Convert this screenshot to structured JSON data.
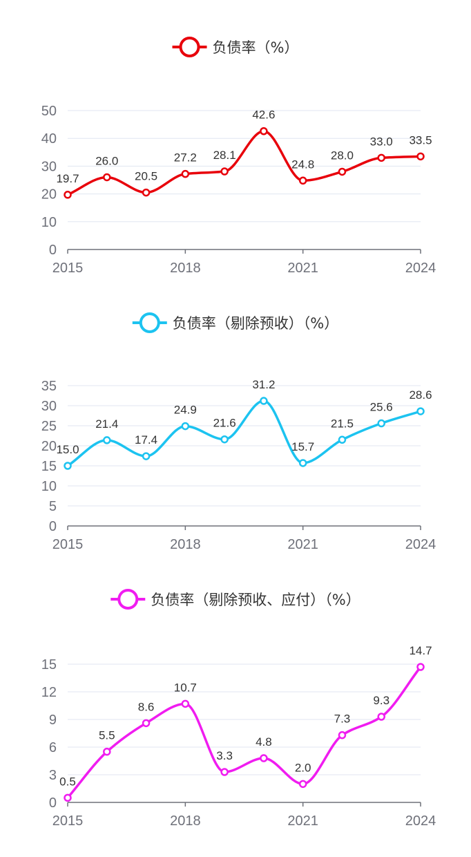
{
  "chart_data": [
    {
      "type": "line",
      "smooth": true,
      "x": [
        2015,
        2016,
        2017,
        2018,
        2019,
        2020,
        2021,
        2022,
        2023,
        2024
      ],
      "x_tick_labels": [
        "2015",
        "2018",
        "2021",
        "2024"
      ],
      "xlim": [
        2015,
        2024
      ],
      "ylim": [
        0,
        50
      ],
      "y_ticks": [
        0,
        10,
        20,
        30,
        40,
        50
      ],
      "grid": true,
      "legend_position": "top-center",
      "series": [
        {
          "name": "负债率（%）",
          "color": "#e8000b",
          "values": [
            19.7,
            26.0,
            20.5,
            27.2,
            28.1,
            42.6,
            24.8,
            28.0,
            33.0,
            33.5
          ],
          "labels": [
            "19.7",
            "26.0",
            "20.5",
            "27.2",
            "28.1",
            "42.6",
            "24.8",
            "28.0",
            "33.0",
            "33.5"
          ]
        }
      ]
    },
    {
      "type": "line",
      "smooth": true,
      "x": [
        2015,
        2016,
        2017,
        2018,
        2019,
        2020,
        2021,
        2022,
        2023,
        2024
      ],
      "x_tick_labels": [
        "2015",
        "2018",
        "2021",
        "2024"
      ],
      "xlim": [
        2015,
        2024
      ],
      "ylim": [
        0,
        35
      ],
      "y_ticks": [
        0,
        5,
        10,
        15,
        20,
        25,
        30,
        35
      ],
      "grid": true,
      "legend_position": "top-center",
      "series": [
        {
          "name": "负债率（剔除预收）（%）",
          "color": "#1cc3f0",
          "values": [
            15.0,
            21.4,
            17.4,
            24.9,
            21.6,
            31.2,
            15.7,
            21.5,
            25.6,
            28.6
          ],
          "labels": [
            "15.0",
            "21.4",
            "17.4",
            "24.9",
            "21.6",
            "31.2",
            "15.7",
            "21.5",
            "25.6",
            "28.6"
          ]
        }
      ]
    },
    {
      "type": "line",
      "smooth": true,
      "x": [
        2015,
        2016,
        2017,
        2018,
        2019,
        2020,
        2021,
        2022,
        2023,
        2024
      ],
      "x_tick_labels": [
        "2015",
        "2018",
        "2021",
        "2024"
      ],
      "xlim": [
        2015,
        2024
      ],
      "ylim": [
        0,
        15
      ],
      "y_ticks": [
        0,
        3,
        6,
        9,
        12,
        15
      ],
      "grid": true,
      "legend_position": "top-center",
      "series": [
        {
          "name": "负债率（剔除预收、应付）（%）",
          "color": "#f01cf0",
          "values": [
            0.5,
            5.5,
            8.6,
            10.7,
            3.3,
            4.8,
            2.0,
            7.3,
            9.3,
            14.7
          ],
          "labels": [
            "0.5",
            "5.5",
            "8.6",
            "10.7",
            "3.3",
            "4.8",
            "2.0",
            "7.3",
            "9.3",
            "14.7"
          ]
        }
      ]
    }
  ]
}
